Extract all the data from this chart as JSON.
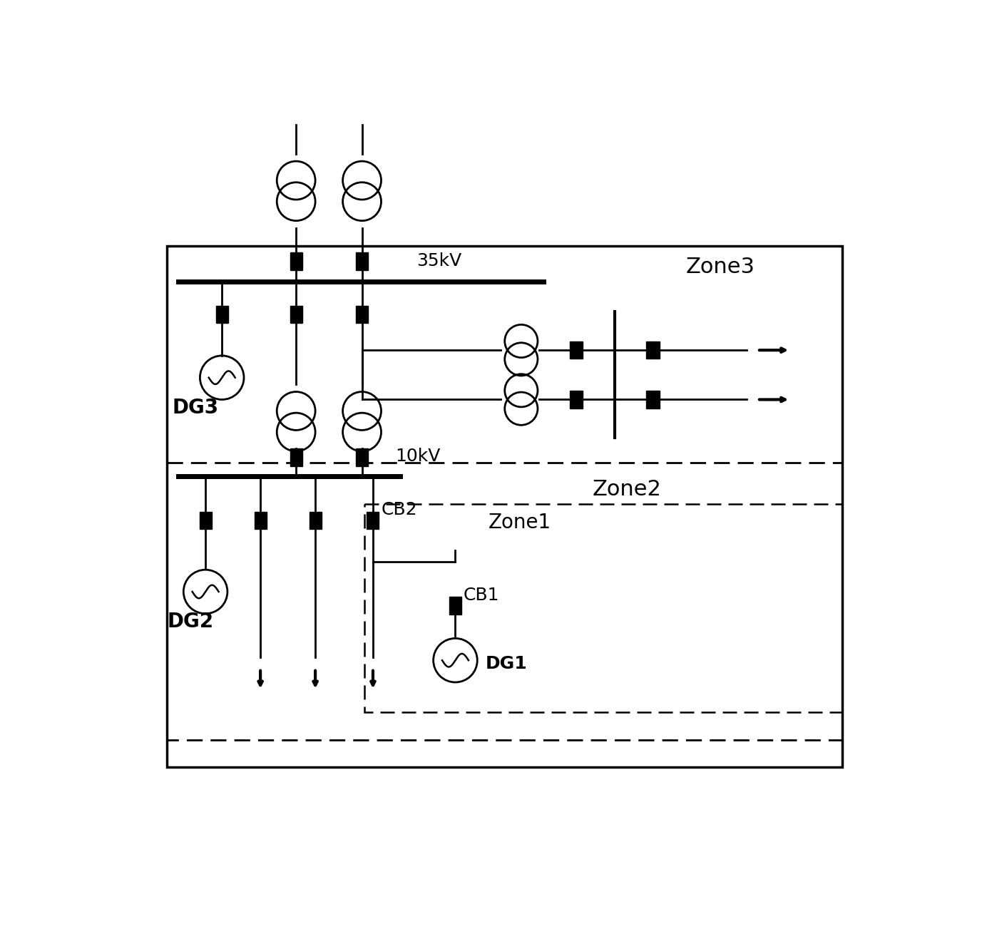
{
  "bg_color": "#ffffff",
  "line_color": "#000000",
  "zone3_label": "Zone3",
  "zone2_label": "Zone2",
  "zone1_label": "Zone1",
  "label_35kV": "35kV",
  "label_10kV": "10kV",
  "label_CB1": "CB1",
  "label_CB2": "CB2",
  "label_DG1": "DG1",
  "label_DG2": "DG2",
  "label_DG3": "DG3",
  "figw": 13.84,
  "figh": 13.34
}
